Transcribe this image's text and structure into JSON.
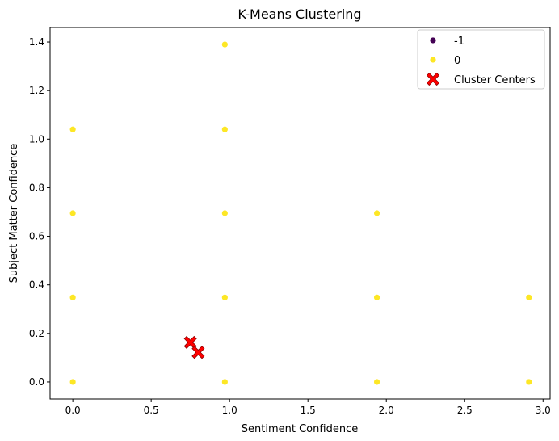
{
  "chart_data": {
    "type": "scatter",
    "title": "K-Means Clustering",
    "xlabel": "Sentiment Confidence",
    "ylabel": "Subject Matter Confidence",
    "xlim": [
      -0.145,
      3.045
    ],
    "ylim": [
      -0.07,
      1.46
    ],
    "xticks": [
      0.0,
      0.5,
      1.0,
      1.5,
      2.0,
      2.5,
      3.0
    ],
    "xtick_labels": [
      "0.0",
      "0.5",
      "1.0",
      "1.5",
      "2.0",
      "2.5",
      "3.0"
    ],
    "yticks": [
      0.0,
      0.2,
      0.4,
      0.6,
      0.8,
      1.0,
      1.2,
      1.4
    ],
    "ytick_labels": [
      "0.0",
      "0.2",
      "0.4",
      "0.6",
      "0.8",
      "1.0",
      "1.2",
      "1.4"
    ],
    "grid": false,
    "legend_position": "top-right",
    "series": [
      {
        "name": "-1",
        "color": "#440154",
        "marker": "circle",
        "points": []
      },
      {
        "name": "0",
        "color": "#fde725",
        "marker": "circle",
        "points": [
          [
            0.0,
            1.04
          ],
          [
            0.0,
            0.695
          ],
          [
            0.0,
            0.348
          ],
          [
            0.0,
            0.0
          ],
          [
            0.97,
            1.39
          ],
          [
            0.97,
            1.04
          ],
          [
            0.97,
            0.695
          ],
          [
            0.97,
            0.348
          ],
          [
            0.97,
            0.0
          ],
          [
            1.94,
            0.695
          ],
          [
            1.94,
            0.348
          ],
          [
            1.94,
            0.0
          ],
          [
            2.91,
            0.348
          ],
          [
            2.91,
            0.0
          ]
        ]
      },
      {
        "name": "Cluster Centers",
        "color": "#ff0000",
        "marker": "x-filled",
        "points": [
          [
            0.75,
            0.163
          ],
          [
            0.8,
            0.122
          ]
        ]
      }
    ]
  }
}
